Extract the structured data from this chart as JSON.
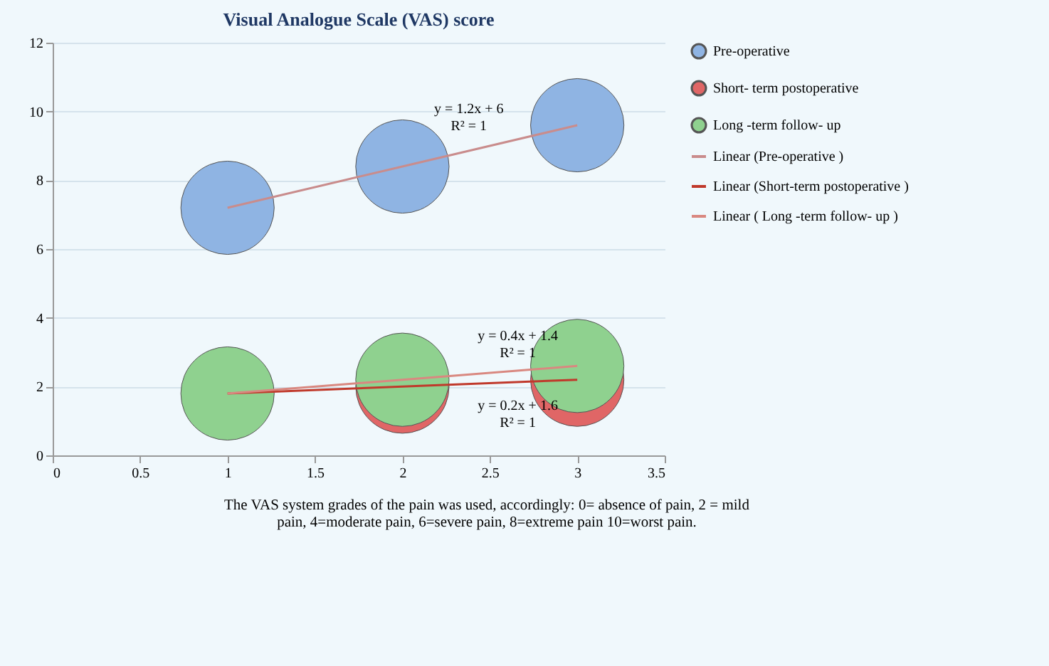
{
  "chart_data": {
    "type": "bubble",
    "title": "Visual Analogue Scale  (VAS) score",
    "x": [
      1,
      2,
      3
    ],
    "series": [
      {
        "name": "Pre-operative",
        "color": "#8fb4e3",
        "values": [
          7.2,
          8.4,
          9.6
        ],
        "sizes": [
          1,
          1,
          1
        ]
      },
      {
        "name": "Short- term postoperative",
        "color": "#e06666",
        "values": [
          null,
          2.0,
          2.2
        ],
        "sizes": [
          null,
          1,
          1
        ]
      },
      {
        "name": "Long -term follow- up",
        "color": "#8fd18f",
        "values": [
          1.8,
          2.2,
          2.6
        ],
        "sizes": [
          1,
          1,
          1
        ]
      },
      {
        "name": "Linear (Pre-operative )",
        "type": "line",
        "color": "#c98c8c",
        "values": [
          7.2,
          8.4,
          9.6
        ]
      },
      {
        "name": "Linear (Short-term postoperative )",
        "type": "line",
        "color": "#c0392b",
        "values": [
          1.8,
          2.0,
          2.2
        ]
      },
      {
        "name": "Linear ( Long -term follow- up )",
        "type": "line",
        "color": "#d98880",
        "values": [
          1.8,
          2.2,
          2.6
        ]
      }
    ],
    "annotations": [
      "y = 1.2x + 6\nR² = 1",
      "y = 0.4x + 1.4\nR² = 1",
      "y = 0.2x + 1.6\nR² = 1",
      "The VAS system grades of the pain was used, accordingly: 0= absence of pain, 2 = mild\npain, 4=moderate pain, 6=severe pain, 8=extreme pain 10=worst pain."
    ],
    "xlim": [
      0,
      3.5
    ],
    "xticks": [
      0,
      0.5,
      1,
      1.5,
      2,
      2.5,
      3,
      3.5
    ],
    "ylim": [
      0,
      12
    ],
    "yticks": [
      0,
      2,
      4,
      6,
      8,
      10,
      12
    ],
    "grid": "y",
    "legend": "right",
    "line_style": "solid"
  }
}
